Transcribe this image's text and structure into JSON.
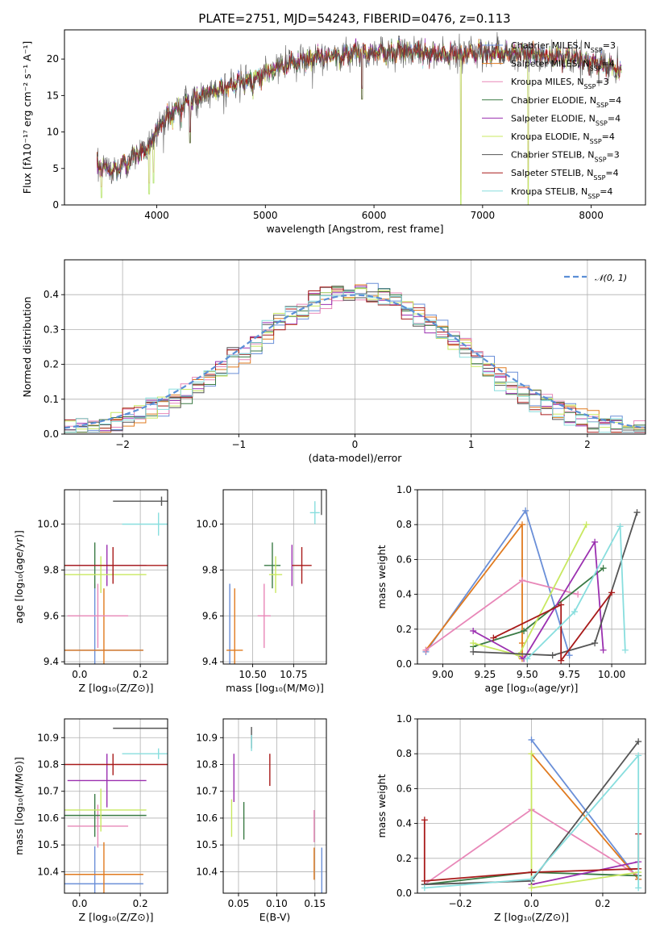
{
  "colors": {
    "Chabrier MILES": "#6a8fd8",
    "Salpeter MILES": "#e07a1f",
    "Kroupa MILES": "#e887b8",
    "Chabrier ELODIE": "#3a7a44",
    "Salpeter ELODIE": "#9b30b0",
    "Kroupa ELODIE": "#c8e860",
    "Chabrier STELIB": "#555555",
    "Salpeter STELIB": "#a81a1a",
    "Kroupa STELIB": "#88dede"
  },
  "chart_data": [
    {
      "id": "spectrum",
      "type": "line",
      "title": "PLATE=2751, MJD=54243, FIBERID=0476, z=0.113",
      "xlabel": "wavelength [Angstrom, rest frame]",
      "ylabel": "Flux [fλ10⁻¹⁷ erg cm⁻² s⁻¹ A⁻¹]",
      "xlim": [
        3150,
        8500
      ],
      "ylim": [
        0,
        24
      ],
      "xticks": [
        4000,
        5000,
        6000,
        7000,
        8000
      ],
      "yticks": [
        0,
        5,
        10,
        15,
        20
      ],
      "grid": false,
      "legend_position": "right",
      "legend": [
        {
          "name": "Chabrier MILES, N",
          "sub": "SSP",
          "suffix": "=3",
          "color": "#6a8fd8"
        },
        {
          "name": "Salpeter MILES, N",
          "sub": "SSP",
          "suffix": "=4",
          "color": "#e07a1f"
        },
        {
          "name": "Kroupa MILES, N",
          "sub": "SSP",
          "suffix": "=3",
          "color": "#e887b8"
        },
        {
          "name": "Chabrier ELODIE, N",
          "sub": "SSP",
          "suffix": "=4",
          "color": "#3a7a44"
        },
        {
          "name": "Salpeter ELODIE, N",
          "sub": "SSP",
          "suffix": "=4",
          "color": "#9b30b0"
        },
        {
          "name": "Kroupa ELODIE, N",
          "sub": "SSP",
          "suffix": "=4",
          "color": "#c8e860"
        },
        {
          "name": "Chabrier STELIB, N",
          "sub": "SSP",
          "suffix": "=3",
          "color": "#555555"
        },
        {
          "name": "Salpeter STELIB, N",
          "sub": "SSP",
          "suffix": "=4",
          "color": "#a81a1a"
        },
        {
          "name": "Kroupa STELIB, N",
          "sub": "SSP",
          "suffix": "=4",
          "color": "#88dede"
        }
      ],
      "continuum_x": [
        3500,
        3600,
        3700,
        3800,
        3900,
        3950,
        4000,
        4100,
        4300,
        4500,
        4700,
        4900,
        5100,
        5300,
        5500,
        5700,
        5900,
        6100,
        6300,
        6500,
        6700,
        6900,
        7100,
        7300,
        7500,
        7700,
        7900,
        8100,
        8250
      ],
      "continuum_y": [
        5.2,
        4.6,
        5.6,
        6.8,
        7.8,
        8.6,
        10.2,
        12.2,
        14.2,
        15.5,
        16.5,
        17.3,
        18.8,
        19.6,
        20.2,
        20.6,
        20.8,
        21.0,
        21.0,
        20.7,
        20.6,
        20.8,
        20.9,
        20.8,
        20.6,
        20.4,
        19.8,
        19.2,
        18.8
      ],
      "dips": [
        {
          "x": 3490,
          "y": 1.0
        },
        {
          "x": 3930,
          "y": 1.5
        },
        {
          "x": 3970,
          "y": 3.0
        },
        {
          "x": 4305,
          "y": 8.5
        },
        {
          "x": 5890,
          "y": 14.5
        },
        {
          "x": 6800,
          "y": 0.0
        },
        {
          "x": 7420,
          "y": 0.0
        }
      ]
    },
    {
      "id": "residuals",
      "type": "line",
      "xlabel": "(data-model)/error",
      "ylabel": "Normed distribution",
      "xlim": [
        -2.5,
        2.5
      ],
      "ylim": [
        0,
        0.5
      ],
      "xticks": [
        -2,
        -1,
        0,
        1,
        2
      ],
      "yticks": [
        0.0,
        0.1,
        0.2,
        0.3,
        0.4
      ],
      "grid": true,
      "legend_position": "upper right",
      "reference_curve": {
        "name": "𝒩(0, 1)",
        "mean": 0,
        "sigma": 1,
        "style": "dashed",
        "color": "#5b8fd6"
      },
      "histogram_bin_width": 0.1
    },
    {
      "id": "age_vs_Z",
      "type": "scatter",
      "xlabel": "Z [log₁₀(Z/Z⊙)]",
      "ylabel": "age  [log₁₀(age/yr)]",
      "xlim": [
        -0.05,
        0.29
      ],
      "ylim": [
        9.39,
        10.15
      ],
      "xticks": [
        0.0,
        0.2
      ],
      "yticks": [
        9.4,
        9.6,
        9.8,
        10.0
      ],
      "grid": true,
      "points": [
        {
          "model": "Chabrier MILES",
          "x": 0.05,
          "xerr": 0.16,
          "y": 9.45,
          "yerr": 0.29
        },
        {
          "model": "Salpeter MILES",
          "x": 0.08,
          "xerr": 0.13,
          "y": 9.45,
          "yerr": 0.27
        },
        {
          "model": "Kroupa MILES",
          "x": 0.06,
          "xerr": 0.1,
          "y": 9.6,
          "yerr": 0.14
        },
        {
          "model": "Chabrier ELODIE",
          "x": 0.05,
          "xerr": 0.17,
          "y": 9.82,
          "yerr": 0.1
        },
        {
          "model": "Salpeter ELODIE",
          "x": 0.09,
          "xerr": 0.13,
          "y": 9.82,
          "yerr": 0.09
        },
        {
          "model": "Kroupa ELODIE",
          "x": 0.07,
          "xerr": 0.15,
          "y": 9.78,
          "yerr": 0.08
        },
        {
          "model": "Chabrier STELIB",
          "x": 0.27,
          "xerr": 0.16,
          "y": 10.1,
          "yerr": 0.02
        },
        {
          "model": "Salpeter STELIB",
          "x": 0.11,
          "xerr": 0.18,
          "y": 9.82,
          "yerr": 0.08
        },
        {
          "model": "Kroupa STELIB",
          "x": 0.26,
          "xerr": 0.12,
          "y": 10.0,
          "yerr": 0.05
        }
      ]
    },
    {
      "id": "age_vs_mass",
      "type": "scatter",
      "xlabel": "mass [log₁₀(M/M⊙)]",
      "xlim": [
        10.32,
        10.95
      ],
      "ylim": [
        9.39,
        10.15
      ],
      "xticks": [
        10.5,
        10.75
      ],
      "yticks": [
        9.4,
        9.6,
        9.8,
        10.0
      ],
      "grid": true,
      "points": [
        {
          "model": "Chabrier MILES",
          "x": 10.36,
          "xerr": 0.0,
          "y": 9.45,
          "yerr": 0.29
        },
        {
          "model": "Salpeter MILES",
          "x": 10.39,
          "xerr": 0.05,
          "y": 9.45,
          "yerr": 0.27
        },
        {
          "model": "Kroupa MILES",
          "x": 10.57,
          "xerr": 0.04,
          "y": 9.6,
          "yerr": 0.14
        },
        {
          "model": "Chabrier ELODIE",
          "x": 10.62,
          "xerr": 0.05,
          "y": 9.82,
          "yerr": 0.1
        },
        {
          "model": "Salpeter ELODIE",
          "x": 10.74,
          "xerr": 0.0,
          "y": 9.82,
          "yerr": 0.09
        },
        {
          "model": "Kroupa ELODIE",
          "x": 10.64,
          "xerr": 0.04,
          "y": 9.78,
          "yerr": 0.08
        },
        {
          "model": "Chabrier STELIB",
          "x": 10.92,
          "xerr": 0.0,
          "y": 10.1,
          "yerr": 0.06
        },
        {
          "model": "Salpeter STELIB",
          "x": 10.8,
          "xerr": 0.06,
          "y": 9.82,
          "yerr": 0.08
        },
        {
          "model": "Kroupa STELIB",
          "x": 10.88,
          "xerr": 0.03,
          "y": 10.05,
          "yerr": 0.05
        }
      ]
    },
    {
      "id": "weight_vs_age",
      "type": "line",
      "xlabel": "age  [log₁₀(age/yr)]",
      "ylabel": "mass weight",
      "xlim": [
        8.85,
        10.2
      ],
      "ylim": [
        0,
        1.0
      ],
      "xticks": [
        9.0,
        9.25,
        9.5,
        9.75,
        10.0
      ],
      "yticks": [
        0.0,
        0.2,
        0.4,
        0.6,
        0.8,
        1.0
      ],
      "grid": true,
      "series": [
        {
          "model": "Chabrier MILES",
          "x": [
            8.9,
            9.49,
            9.75
          ],
          "y": [
            0.07,
            0.88,
            0.05
          ]
        },
        {
          "model": "Salpeter MILES",
          "x": [
            8.9,
            9.47,
            9.47,
            9.47
          ],
          "y": [
            0.08,
            0.8,
            0.12,
            0.03
          ]
        },
        {
          "model": "Kroupa MILES",
          "x": [
            8.9,
            9.47,
            9.8
          ],
          "y": [
            0.08,
            0.48,
            0.4
          ]
        },
        {
          "model": "Chabrier ELODIE",
          "x": [
            9.18,
            9.48,
            9.95
          ],
          "y": [
            0.1,
            0.19,
            0.55
          ]
        },
        {
          "model": "Salpeter ELODIE",
          "x": [
            9.18,
            9.48,
            9.9,
            9.95
          ],
          "y": [
            0.19,
            0.03,
            0.7,
            0.08
          ]
        },
        {
          "model": "Kroupa ELODIE",
          "x": [
            9.18,
            9.45,
            9.85
          ],
          "y": [
            0.12,
            0.05,
            0.8
          ]
        },
        {
          "model": "Chabrier STELIB",
          "x": [
            9.18,
            9.65,
            9.9,
            10.15
          ],
          "y": [
            0.07,
            0.05,
            0.12,
            0.87
          ]
        },
        {
          "model": "Salpeter STELIB",
          "x": [
            9.3,
            9.7,
            9.7,
            10.0
          ],
          "y": [
            0.15,
            0.34,
            0.02,
            0.41
          ]
        },
        {
          "model": "Kroupa STELIB",
          "x": [
            9.5,
            9.78,
            10.05,
            10.08
          ],
          "y": [
            0.03,
            0.3,
            0.79,
            0.08
          ]
        }
      ]
    },
    {
      "id": "mass_vs_Z",
      "type": "scatter",
      "xlabel": "Z [log₁₀(Z/Z⊙)]",
      "ylabel": "mass [log₁₀(M/M⊙)]",
      "xlim": [
        -0.05,
        0.29
      ],
      "ylim": [
        10.32,
        10.97
      ],
      "xticks": [
        0.0,
        0.2
      ],
      "yticks": [
        10.4,
        10.5,
        10.6,
        10.7,
        10.8,
        10.9
      ],
      "grid": true,
      "points": [
        {
          "model": "Chabrier MILES",
          "x": 0.05,
          "xerr": 0.16,
          "y": 10.355,
          "yerr": 0.14
        },
        {
          "model": "Salpeter MILES",
          "x": 0.08,
          "xerr": 0.13,
          "y": 10.39,
          "yerr": 0.12
        },
        {
          "model": "Kroupa MILES",
          "x": 0.06,
          "xerr": 0.1,
          "y": 10.57,
          "yerr": 0.08
        },
        {
          "model": "Chabrier ELODIE",
          "x": 0.05,
          "xerr": 0.17,
          "y": 10.61,
          "yerr": 0.08
        },
        {
          "model": "Salpeter ELODIE",
          "x": 0.09,
          "xerr": 0.13,
          "y": 10.74,
          "yerr": 0.1
        },
        {
          "model": "Kroupa ELODIE",
          "x": 0.07,
          "xerr": 0.15,
          "y": 10.63,
          "yerr": 0.08
        },
        {
          "model": "Chabrier STELIB",
          "x": 0.27,
          "xerr": 0.16,
          "y": 10.935,
          "yerr": 0.0
        },
        {
          "model": "Salpeter STELIB",
          "x": 0.11,
          "xerr": 0.18,
          "y": 10.8,
          "yerr": 0.04
        },
        {
          "model": "Kroupa STELIB",
          "x": 0.26,
          "xerr": 0.12,
          "y": 10.84,
          "yerr": 0.02
        }
      ]
    },
    {
      "id": "mass_vs_ebv",
      "type": "scatter",
      "xlabel": "E(B-V)",
      "xlim": [
        0.03,
        0.165
      ],
      "ylim": [
        10.32,
        10.97
      ],
      "xticks": [
        0.05,
        0.1,
        0.15
      ],
      "yticks": [
        10.4,
        10.5,
        10.6,
        10.7,
        10.8,
        10.9
      ],
      "grid": true,
      "points": [
        {
          "model": "Chabrier MILES",
          "x": 0.159,
          "xerr": 0.0,
          "y": 10.4,
          "yerr": 0.09
        },
        {
          "model": "Salpeter MILES",
          "x": 0.149,
          "xerr": 0.0,
          "y": 10.43,
          "yerr": 0.06
        },
        {
          "model": "Kroupa MILES",
          "x": 0.149,
          "xerr": 0.0,
          "y": 10.57,
          "yerr": 0.06
        },
        {
          "model": "Chabrier ELODIE",
          "x": 0.057,
          "xerr": 0.0,
          "y": 10.59,
          "yerr": 0.07
        },
        {
          "model": "Salpeter ELODIE",
          "x": 0.044,
          "xerr": 0.0,
          "y": 10.75,
          "yerr": 0.09
        },
        {
          "model": "Kroupa ELODIE",
          "x": 0.041,
          "xerr": 0.0,
          "y": 10.6,
          "yerr": 0.07
        },
        {
          "model": "Chabrier STELIB",
          "x": 0.067,
          "xerr": 0.0,
          "y": 10.9,
          "yerr": 0.04
        },
        {
          "model": "Salpeter STELIB",
          "x": 0.091,
          "xerr": 0.0,
          "y": 10.78,
          "yerr": 0.06
        },
        {
          "model": "Kroupa STELIB",
          "x": 0.067,
          "xerr": 0.0,
          "y": 10.88,
          "yerr": 0.03
        }
      ]
    },
    {
      "id": "weight_vs_Z",
      "type": "line",
      "xlabel": "Z [log₁₀(Z/Z⊙)]",
      "ylabel": "mass weight",
      "xlim": [
        -0.32,
        0.32
      ],
      "ylim": [
        0,
        1.0
      ],
      "xticks": [
        -0.2,
        0.0,
        0.2
      ],
      "yticks": [
        0.0,
        0.2,
        0.4,
        0.6,
        0.8,
        1.0
      ],
      "grid": true,
      "series": [
        {
          "model": "Chabrier MILES",
          "x": [
            0.0,
            0.3
          ],
          "y": [
            0.88,
            0.08
          ]
        },
        {
          "model": "Salpeter MILES",
          "x": [
            0.0,
            0.3
          ],
          "y": [
            0.8,
            0.08
          ]
        },
        {
          "model": "Kroupa MILES",
          "x": [
            -0.3,
            0.0,
            0.3
          ],
          "y": [
            0.05,
            0.48,
            0.1
          ]
        },
        {
          "model": "Chabrier ELODIE",
          "x": [
            -0.3,
            0.0,
            0.3
          ],
          "y": [
            0.05,
            0.12,
            0.1
          ]
        },
        {
          "model": "Salpeter ELODIE",
          "x": [
            0.0,
            0.3
          ],
          "y": [
            0.05,
            0.18
          ]
        },
        {
          "model": "Kroupa ELODIE",
          "x": [
            0.0,
            0.0,
            0.3
          ],
          "y": [
            0.8,
            0.03,
            0.12
          ]
        },
        {
          "model": "Chabrier STELIB",
          "x": [
            -0.3,
            0.0,
            0.3
          ],
          "y": [
            0.05,
            0.07,
            0.87
          ]
        },
        {
          "model": "Salpeter STELIB",
          "x": [
            -0.3,
            -0.3,
            0.0,
            0.3,
            0.3
          ],
          "y": [
            0.42,
            0.07,
            0.12,
            0.14,
            0.34
          ]
        },
        {
          "model": "Kroupa STELIB",
          "x": [
            -0.3,
            0.0,
            0.3,
            0.3
          ],
          "y": [
            0.03,
            0.08,
            0.79,
            0.03
          ]
        }
      ]
    }
  ]
}
